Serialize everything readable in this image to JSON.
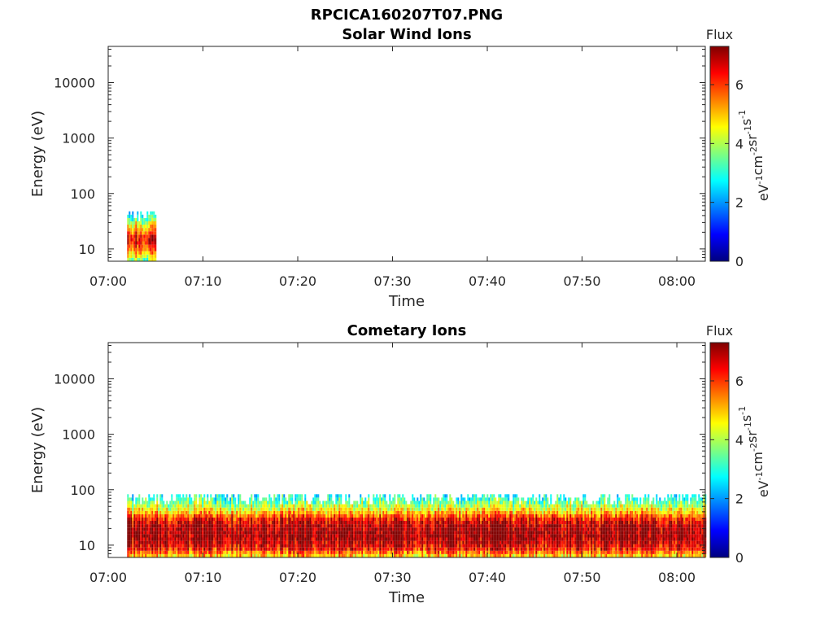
{
  "figure": {
    "title": "RPCICA160207T07.PNG",
    "colorbar": {
      "title": "Flux",
      "unit_label": "eV-1cm-2sr-1s-1",
      "unit_parts": [
        [
          "eV",
          "-1"
        ],
        [
          "cm",
          "-2"
        ],
        [
          "sr",
          "-1"
        ],
        [
          "s",
          "-1"
        ]
      ],
      "range": [
        0,
        7.3
      ],
      "ticks": [
        0,
        2,
        4,
        6
      ],
      "tick_labels": [
        "0",
        "2",
        "4",
        "6"
      ],
      "colormap": "jet",
      "colors": [
        "#00007f",
        "#0000ff",
        "#007fff",
        "#00ffff",
        "#7fff7f",
        "#ffff00",
        "#ff7f00",
        "#ff0000",
        "#7f0000"
      ]
    }
  },
  "chart_data": [
    {
      "type": "heatmap",
      "title": "Solar Wind Ions",
      "xlabel": "Time",
      "ylabel": "Energy (eV)",
      "y_scale": "log",
      "xlim": [
        "07:00",
        "08:03"
      ],
      "ylim": [
        6,
        45000
      ],
      "x_ticks": [
        "07:00",
        "07:10",
        "07:20",
        "07:30",
        "07:40",
        "07:50",
        "08:00"
      ],
      "y_ticks": [
        10,
        100,
        1000,
        10000
      ],
      "y_tick_labels": [
        "10",
        "100",
        "1000",
        "10000"
      ],
      "grid": false,
      "data_window": [
        "07:02",
        "07:05"
      ],
      "flux_profile": [
        {
          "energy_eV": 6,
          "flux": 3.8
        },
        {
          "energy_eV": 8,
          "flux": 5.2
        },
        {
          "energy_eV": 11,
          "flux": 6.3
        },
        {
          "energy_eV": 15,
          "flux": 6.6
        },
        {
          "energy_eV": 20,
          "flux": 5.6
        },
        {
          "energy_eV": 27,
          "flux": 4.2
        },
        {
          "energy_eV": 37,
          "flux": 3.0
        },
        {
          "energy_eV": 50,
          "flux": 2.6
        }
      ]
    },
    {
      "type": "heatmap",
      "title": "Cometary Ions",
      "xlabel": "Time",
      "ylabel": "Energy (eV)",
      "y_scale": "log",
      "xlim": [
        "07:00",
        "08:03"
      ],
      "ylim": [
        6,
        45000
      ],
      "x_ticks": [
        "07:00",
        "07:10",
        "07:20",
        "07:30",
        "07:40",
        "07:50",
        "08:00"
      ],
      "y_ticks": [
        10,
        100,
        1000,
        10000
      ],
      "y_tick_labels": [
        "10",
        "100",
        "1000",
        "10000"
      ],
      "grid": false,
      "data_window": [
        "07:02",
        "08:03"
      ],
      "flux_profile": [
        {
          "energy_eV": 6,
          "flux": 5.0
        },
        {
          "energy_eV": 8,
          "flux": 6.4
        },
        {
          "energy_eV": 11,
          "flux": 7.0
        },
        {
          "energy_eV": 15,
          "flux": 7.2
        },
        {
          "energy_eV": 20,
          "flux": 7.1
        },
        {
          "energy_eV": 27,
          "flux": 6.4
        },
        {
          "energy_eV": 37,
          "flux": 5.0
        },
        {
          "energy_eV": 50,
          "flux": 3.9
        },
        {
          "energy_eV": 70,
          "flux": 2.8
        },
        {
          "energy_eV": 85,
          "flux": 2.5
        }
      ]
    }
  ]
}
